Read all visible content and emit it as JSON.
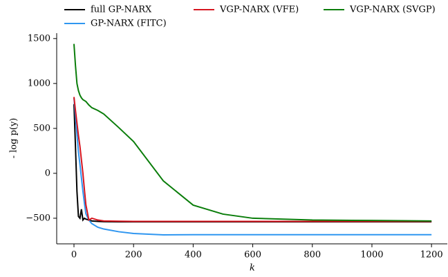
{
  "chart_data": {
    "type": "line",
    "xlabel": "k",
    "ylabel": "- log p(y)",
    "x": [
      0,
      5,
      10,
      15,
      20,
      25,
      30,
      35,
      40,
      50,
      60,
      80,
      100,
      150,
      200,
      300,
      400,
      500,
      600,
      800,
      1000,
      1200
    ],
    "series": [
      {
        "name": "full GP-NARX",
        "color": "#000000",
        "values": [
          770,
          300,
          -200,
          -480,
          -500,
          -400,
          -520,
          -500,
          -510,
          -520,
          -530,
          -535,
          -538,
          -540,
          -540,
          -540,
          -540,
          -540,
          -540,
          -540,
          -540,
          -540
        ]
      },
      {
        "name": "GP-NARX (FITC)",
        "color": "#2f96f0",
        "values": [
          840,
          640,
          440,
          240,
          100,
          -50,
          -200,
          -330,
          -450,
          -520,
          -560,
          -600,
          -620,
          -650,
          -670,
          -685,
          -683,
          -683,
          -683,
          -683,
          -683,
          -683
        ]
      },
      {
        "name": "VGP-NARX (VFE)",
        "color": "#d6151f",
        "values": [
          850,
          700,
          560,
          420,
          300,
          150,
          0,
          -180,
          -350,
          -520,
          -500,
          -520,
          -530,
          -533,
          -535,
          -535,
          -535,
          -535,
          -535,
          -535,
          -535,
          -535
        ]
      },
      {
        "name": "VGP-NARX (SVGP)",
        "color": "#0a7d0a",
        "values": [
          1440,
          1200,
          1000,
          920,
          870,
          840,
          820,
          810,
          800,
          760,
          730,
          700,
          660,
          510,
          354,
          -85,
          -354,
          -454,
          -500,
          -520,
          -525,
          -530
        ]
      }
    ],
    "xlim": [
      -58,
      1253
    ],
    "ylim": [
      -785,
      1560
    ],
    "xticks": [
      0,
      200,
      400,
      600,
      800,
      1000,
      1200
    ],
    "yticks": [
      {
        "value": -500,
        "label": "−500"
      },
      0,
      500,
      1000,
      1500
    ],
    "legend": "top"
  }
}
